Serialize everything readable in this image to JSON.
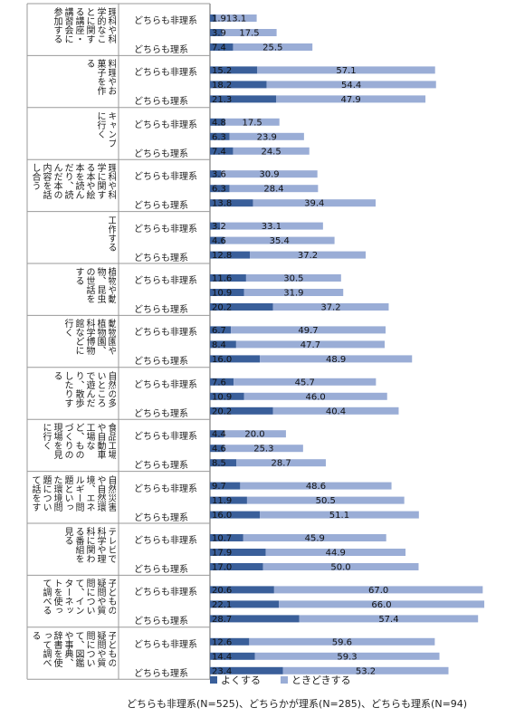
{
  "chart_data": {
    "type": "bar",
    "orientation": "horizontal",
    "stacked": true,
    "series_names": [
      "よくする",
      "ときどきする"
    ],
    "colors": {
      "yoku": "#3a5f9a",
      "tokidoki": "#9aadd6"
    },
    "group_labels": [
      "どちらも非理系",
      "",
      "どちらも理系"
    ],
    "footnote": "どちらも非理系(N=525)、どちらかが理系(N=285)、どちらも理系(N=94)",
    "categories": [
      {
        "label": "理科や科学的なことに関する講座・講習会に参加する",
        "values": [
          [
            1.9,
            13.1
          ],
          [
            3.9,
            17.5
          ],
          [
            7.4,
            25.5
          ]
        ]
      },
      {
        "label": "料理やお菓子を作る",
        "values": [
          [
            15.2,
            57.1
          ],
          [
            18.2,
            54.4
          ],
          [
            21.3,
            47.9
          ]
        ]
      },
      {
        "label": "キャンプに行く",
        "values": [
          [
            4.8,
            17.5
          ],
          [
            6.3,
            23.9
          ],
          [
            7.4,
            24.5
          ]
        ]
      },
      {
        "label": "理科や科学に関する本や絵本を読んだり、読んだ本の内容を話し合う",
        "values": [
          [
            3.6,
            30.9
          ],
          [
            6.3,
            28.4
          ],
          [
            13.8,
            39.4
          ]
        ]
      },
      {
        "label": "工作する",
        "values": [
          [
            3.2,
            33.1
          ],
          [
            4.6,
            35.4
          ],
          [
            12.8,
            37.2
          ]
        ]
      },
      {
        "label": "植物や動物、昆虫の世話をする",
        "values": [
          [
            11.6,
            30.5
          ],
          [
            10.9,
            31.9
          ],
          [
            20.2,
            37.2
          ]
        ]
      },
      {
        "label": "動物園や植物園、科学博物館などに行く",
        "values": [
          [
            6.7,
            49.7
          ],
          [
            8.4,
            47.7
          ],
          [
            16.0,
            48.9
          ]
        ]
      },
      {
        "label": "自然の多いところで遊んだり、散歩したりする",
        "values": [
          [
            7.6,
            45.7
          ],
          [
            10.9,
            46.0
          ],
          [
            20.2,
            40.4
          ]
        ]
      },
      {
        "label": "食品工場や自動車工場など、ものづくりの現場を見に行く",
        "values": [
          [
            4.4,
            20.0
          ],
          [
            4.6,
            25.3
          ],
          [
            8.5,
            28.7
          ]
        ]
      },
      {
        "label": "自然災害や自然環境、エネルギー問題といった環境問題について話をする",
        "values": [
          [
            9.7,
            48.6
          ],
          [
            11.9,
            50.5
          ],
          [
            16.0,
            51.1
          ]
        ]
      },
      {
        "label": "テレビで科学や理科に関わる番組を見る",
        "values": [
          [
            10.7,
            45.9
          ],
          [
            17.9,
            44.9
          ],
          [
            17.0,
            50.0
          ]
        ]
      },
      {
        "label": "子どもの疑問や質問について、インターネットを使って調べる",
        "values": [
          [
            20.6,
            67.0
          ],
          [
            22.1,
            66.0
          ],
          [
            28.7,
            57.4
          ]
        ]
      },
      {
        "label": "子どもの疑問や質問について、図鑑や事典、辞書を使って調べる",
        "values": [
          [
            12.6,
            59.6
          ],
          [
            14.4,
            59.3
          ],
          [
            23.4,
            53.2
          ]
        ]
      }
    ]
  }
}
